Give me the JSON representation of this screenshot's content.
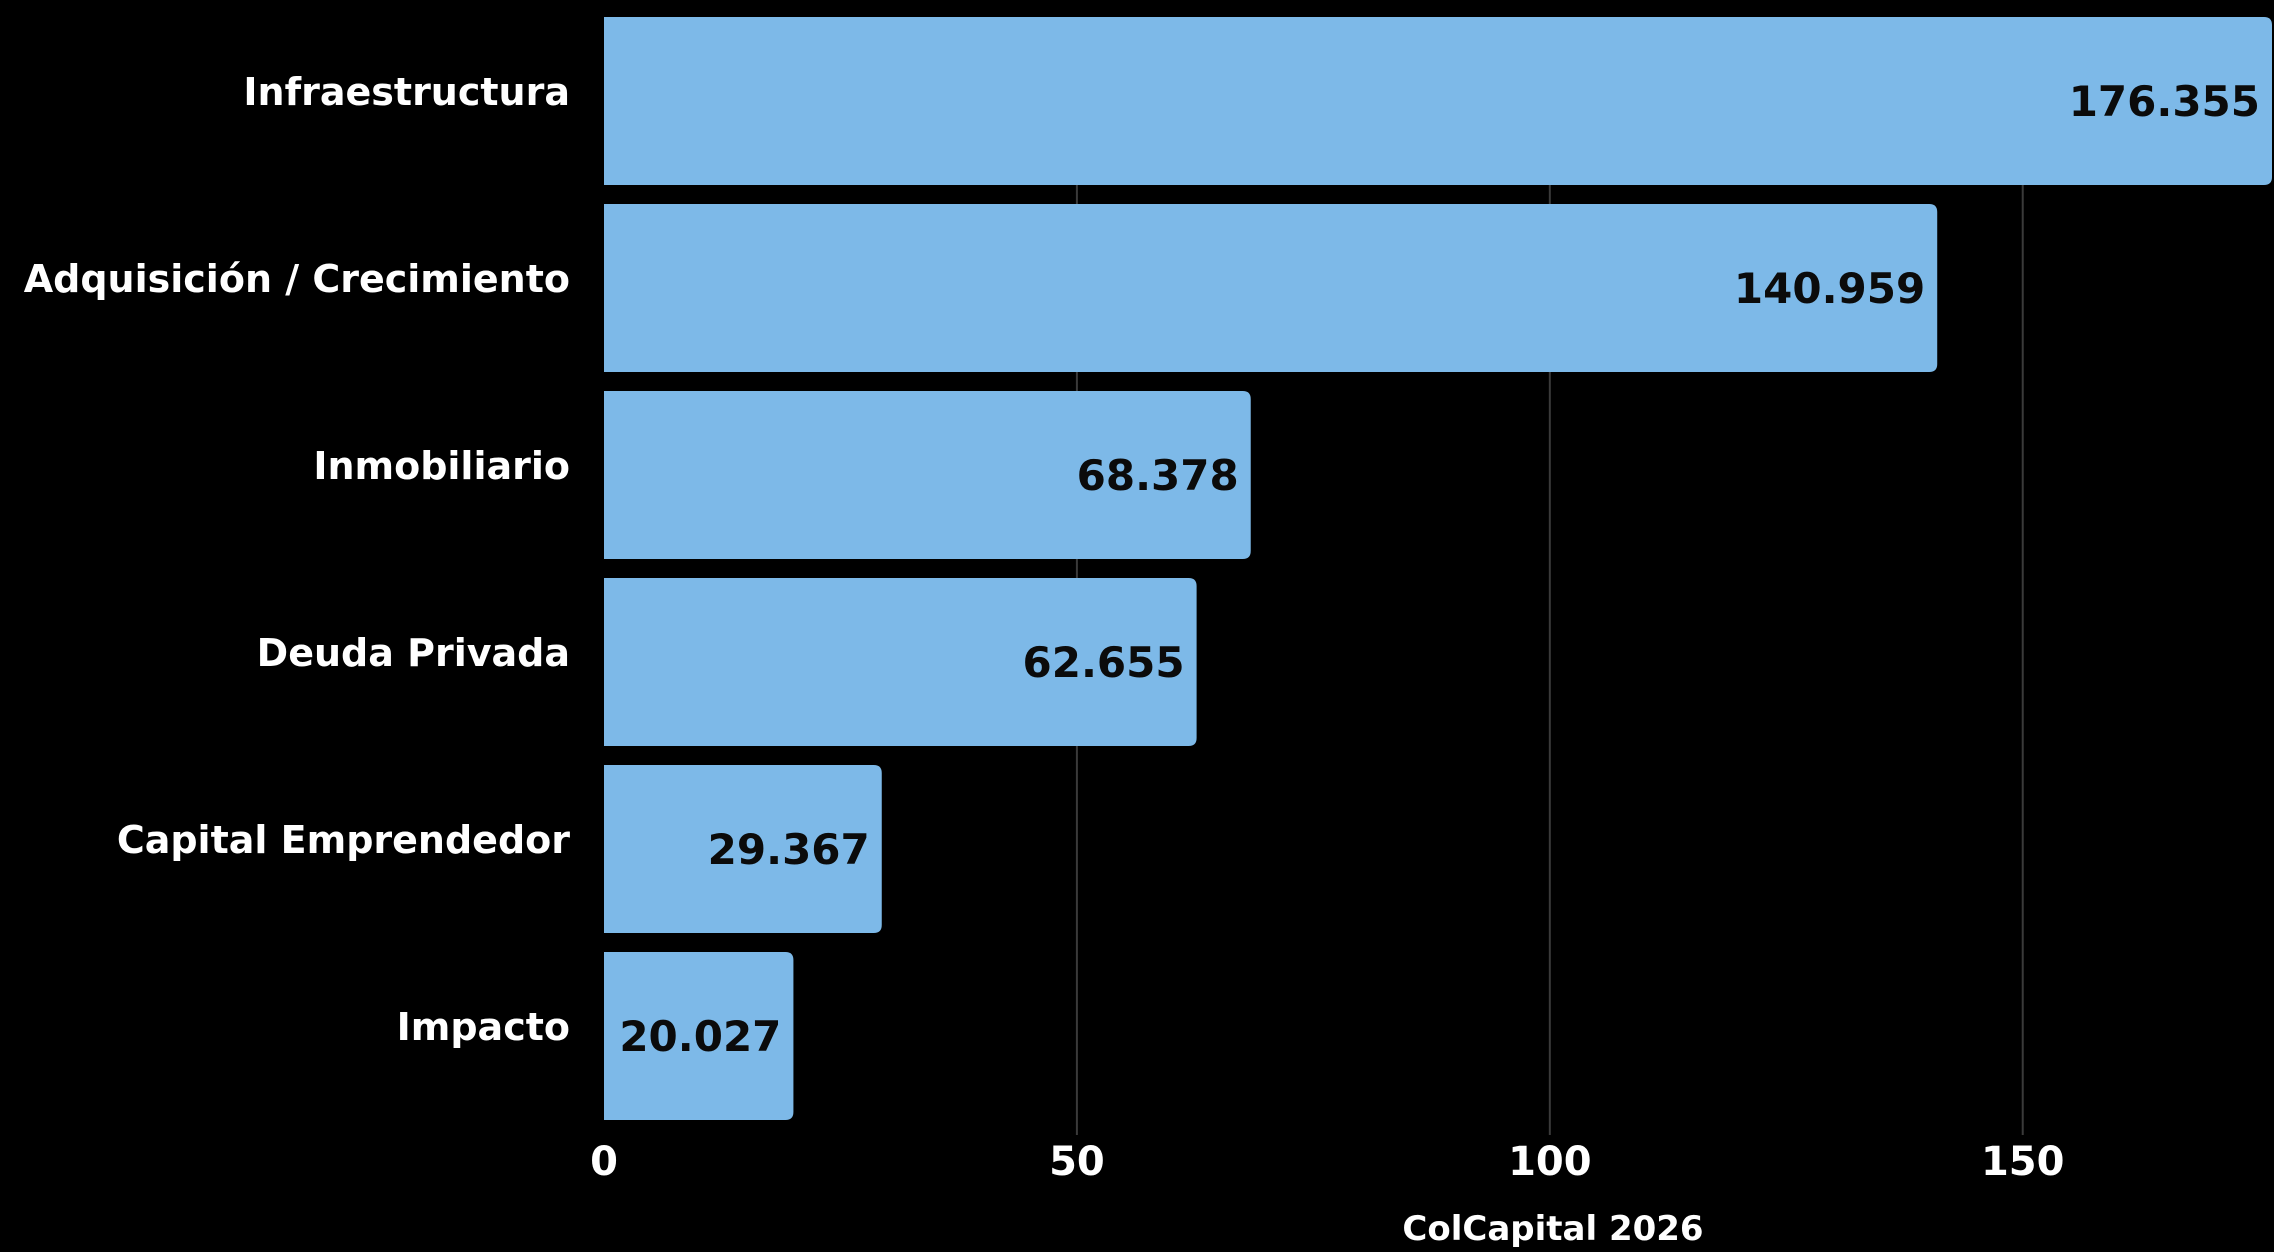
{
  "chart_data": {
    "type": "bar",
    "orientation": "horizontal",
    "categories": [
      "Infraestructura",
      "Adquisición / Crecimiento",
      "Inmobiliario",
      "Deuda Privada",
      "Capital Emprendedor",
      "Impacto"
    ],
    "values": [
      176.355,
      140.959,
      68.378,
      62.655,
      29.367,
      20.027
    ],
    "value_labels": [
      "176.355",
      "140.959",
      "68.378",
      "62.655",
      "29.367",
      "20.027"
    ],
    "xlabel": "ColCapital 2026",
    "ylabel": "",
    "xlim": [
      0,
      176.355
    ],
    "x_ticks": [
      0,
      50,
      100,
      150
    ],
    "grid": "vertical",
    "legend": "none",
    "colors": {
      "bar": "#7db9e8",
      "background": "#000000",
      "text": "#ffffff",
      "value_text": "#0b0b0b",
      "grid": "#3a3a3a"
    }
  }
}
